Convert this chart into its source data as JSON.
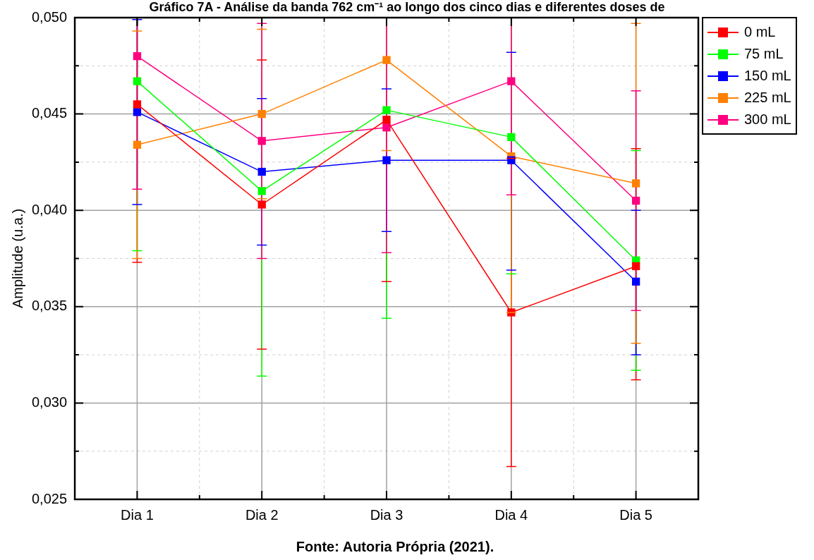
{
  "chart_data": {
    "type": "line",
    "title": "Gráfico 7A - Análise da banda 762 cm⁻¹ ao longo dos cinco dias e diferentes doses de",
    "ylabel": "Amplitude (u.a.)",
    "annotations": [
      "Fonte: Autoria Própria (2021)."
    ],
    "categories": [
      "Dia 1",
      "Dia 2",
      "Dia 3",
      "Dia 4",
      "Dia 5"
    ],
    "series": [
      {
        "name": "0 mL",
        "color": "#ff0000",
        "values": [
          0.0455,
          0.0403,
          0.0447,
          0.0347,
          0.0371
        ],
        "errors": [
          [
            0.0373,
            0.05
          ],
          [
            0.0328,
            0.0478
          ],
          [
            0.0363,
            0.05
          ],
          [
            0.0267,
            0.0427
          ],
          [
            0.0312,
            0.0432
          ]
        ]
      },
      {
        "name": "75 mL",
        "color": "#00ff00",
        "values": [
          0.0467,
          0.041,
          0.0452,
          0.0438,
          0.0374
        ],
        "errors": [
          [
            0.0379,
            0.05
          ],
          [
            0.0314,
            0.05
          ],
          [
            0.0344,
            0.05
          ],
          [
            0.0367,
            0.05
          ],
          [
            0.0317,
            0.0431
          ]
        ]
      },
      {
        "name": "150 mL",
        "color": "#0000ff",
        "values": [
          0.0451,
          0.042,
          0.0426,
          0.0426,
          0.0363
        ],
        "errors": [
          [
            0.0403,
            0.0499
          ],
          [
            0.0382,
            0.0458
          ],
          [
            0.0389,
            0.0463
          ],
          [
            0.0369,
            0.0482
          ],
          [
            0.0325,
            0.04
          ]
        ]
      },
      {
        "name": "225 mL",
        "color": "#ff8000",
        "values": [
          0.0434,
          0.045,
          0.0478,
          0.0428,
          0.0414
        ],
        "errors": [
          [
            0.0375,
            0.0493
          ],
          [
            0.0406,
            0.0494
          ],
          [
            0.0431,
            0.05
          ],
          [
            0.0347,
            0.05
          ],
          [
            0.0331,
            0.0497
          ]
        ]
      },
      {
        "name": "300 mL",
        "color": "#ff0080",
        "values": [
          0.048,
          0.0436,
          0.0443,
          0.0467,
          0.0405
        ],
        "errors": [
          [
            0.0411,
            0.05
          ],
          [
            0.0375,
            0.0497
          ],
          [
            0.0378,
            0.05
          ],
          [
            0.0408,
            0.05
          ],
          [
            0.0348,
            0.0462
          ]
        ]
      }
    ],
    "ylim": [
      0.025,
      0.05
    ],
    "yticks": [
      {
        "value": 0.025,
        "label": "0,025"
      },
      {
        "value": 0.0275,
        "label": null
      },
      {
        "value": 0.03,
        "label": "0,030"
      },
      {
        "value": 0.0325,
        "label": null
      },
      {
        "value": 0.035,
        "label": "0,035"
      },
      {
        "value": 0.0375,
        "label": null
      },
      {
        "value": 0.04,
        "label": "0,040"
      },
      {
        "value": 0.0425,
        "label": null
      },
      {
        "value": 0.045,
        "label": "0,045"
      },
      {
        "value": 0.0475,
        "label": null
      },
      {
        "value": 0.05,
        "label": "0,050"
      }
    ],
    "grid": true,
    "legend": "top right",
    "marker": "square",
    "line_style": "solid"
  }
}
